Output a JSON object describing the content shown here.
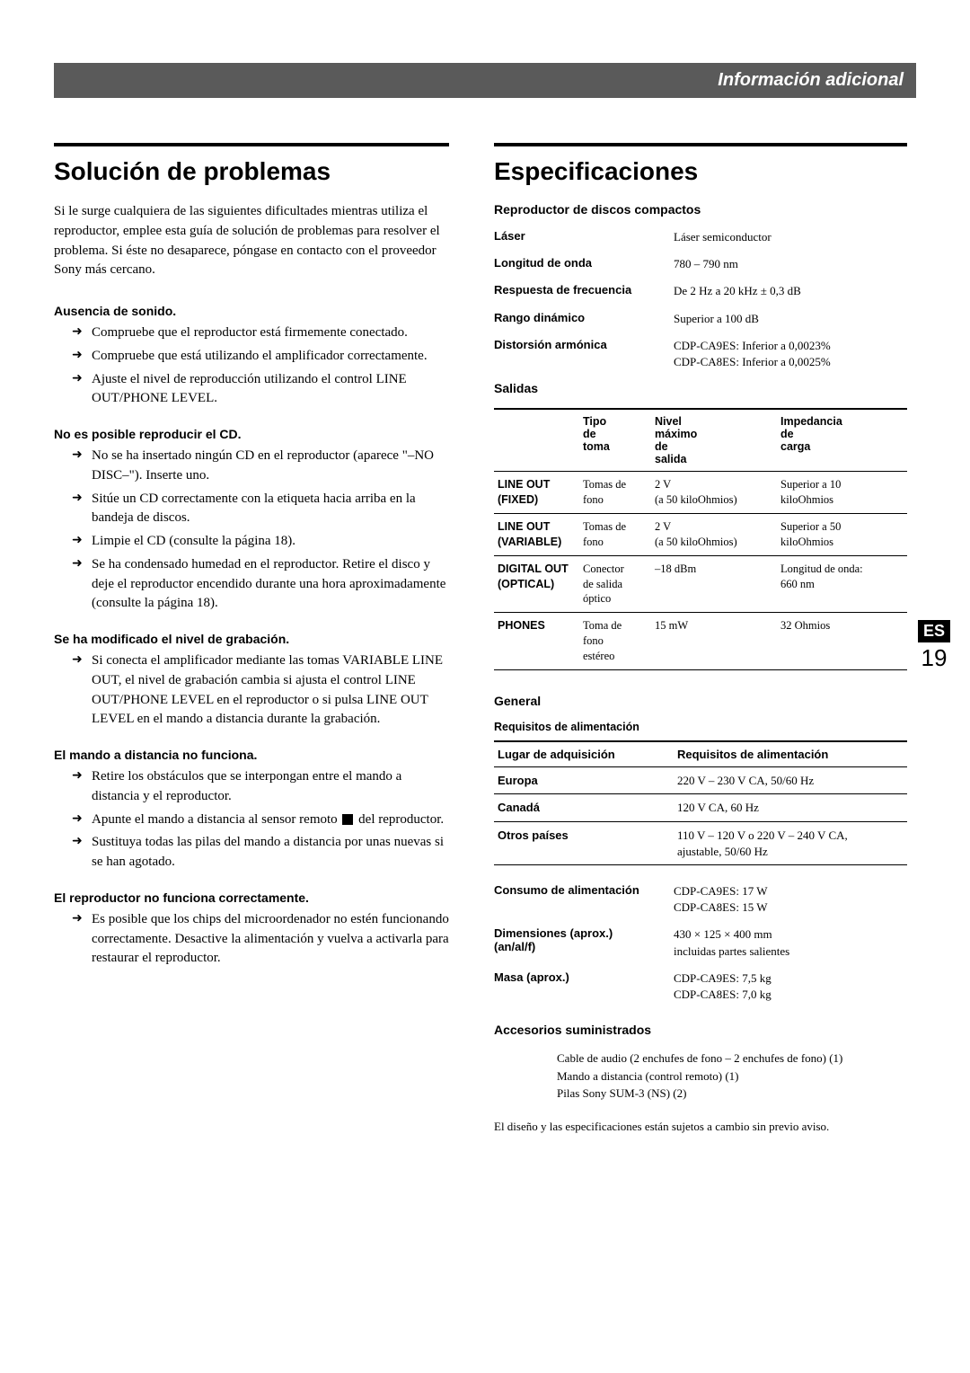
{
  "header": {
    "title": "Información adicional"
  },
  "sidetab": {
    "es": "ES",
    "page": "19"
  },
  "left": {
    "h1": "Solución de problemas",
    "intro": "Si le surge cualquiera de las siguientes dificultades mientras utiliza el reproductor, emplee esta guía de solución de problemas para resolver el problema. Si éste no desaparece, póngase en contacto con el proveedor Sony más cercano.",
    "sections": [
      {
        "head": "Ausencia de sonido.",
        "items": [
          "Compruebe que el reproductor está firmemente conectado.",
          "Compruebe que está utilizando el amplificador correctamente.",
          "Ajuste el nivel de reproducción utilizando el control LINE OUT/PHONE LEVEL."
        ]
      },
      {
        "head": "No es posible reproducir el CD.",
        "items": [
          "No se ha insertado ningún CD en el reproductor (aparece \"–NO DISC–\"). Inserte uno.",
          "Sitúe un CD correctamente con la etiqueta hacia arriba en la bandeja de discos.",
          "Limpie el CD (consulte la página 18).",
          "Se ha condensado humedad en el reproductor. Retire el disco y deje el reproductor encendido durante una hora aproximadamente (consulte la página 18)."
        ]
      },
      {
        "head": "Se ha modificado el nivel de grabación.",
        "items": [
          "Si conecta el amplificador mediante las tomas VARIABLE LINE OUT, el nivel de grabación cambia si ajusta el control LINE OUT/PHONE LEVEL en el reproductor o si pulsa LINE OUT LEVEL en el mando a distancia durante la grabación."
        ]
      },
      {
        "head": "El mando a distancia no funciona.",
        "items": [
          "Retire los obstáculos que se interpongan entre el mando a distancia y el reproductor.",
          "Apunte el mando a distancia al sensor remoto ◼ del reproductor.",
          "Sustituya todas las pilas del mando a distancia por unas nuevas si se han agotado."
        ]
      },
      {
        "head": "El reproductor no funciona correctamente.",
        "items": [
          "Es posible que los chips del microordenador no estén funcionando correctamente. Desactive la alimentación y vuelva a activarla para restaurar el reproductor."
        ]
      }
    ]
  },
  "right": {
    "h1": "Especificaciones",
    "cd_head": "Reproductor de discos compactos",
    "cd_specs": [
      {
        "label": "Láser",
        "value": "Láser semiconductor"
      },
      {
        "label": "Longitud de onda",
        "value": "780 – 790 nm"
      },
      {
        "label": "Respuesta de frecuencia",
        "value": "De 2 Hz a 20 kHz ± 0,3 dB"
      },
      {
        "label": "Rango dinámico",
        "value": "Superior a 100 dB"
      },
      {
        "label": "Distorsión armónica",
        "value": "CDP-CA9ES: Inferior a 0,0023%\nCDP-CA8ES: Inferior a 0,0025%"
      }
    ],
    "salidas_head": "Salidas",
    "salidas_cols": [
      "",
      "Tipo de toma",
      "Nivel máximo de salida",
      "Impedancia de carga"
    ],
    "salidas_rows": [
      {
        "name": "LINE OUT (FIXED)",
        "c1": "Tomas de fono",
        "c2": "2 V\n(a 50 kiloOhmios)",
        "c3": "Superior a 10 kiloOhmios"
      },
      {
        "name": "LINE OUT (VARIABLE)",
        "c1": "Tomas de fono",
        "c2": "2 V\n(a 50 kiloOhmios)",
        "c3": "Superior a 50 kiloOhmios"
      },
      {
        "name": "DIGITAL OUT (OPTICAL)",
        "c1": "Conector de salida óptico",
        "c2": "–18 dBm",
        "c3": "Longitud de onda: 660 nm"
      },
      {
        "name": "PHONES",
        "c1": "Toma de fono estéreo",
        "c2": "15 mW",
        "c3": "32 Ohmios"
      }
    ],
    "general_head": "General",
    "power_sub": "Requisitos de alimentación",
    "power_cols": [
      "Lugar de adquisición",
      "Requisitos de alimentación"
    ],
    "power_rows": [
      {
        "c0": "Europa",
        "c1": "220 V – 230 V CA, 50/60 Hz"
      },
      {
        "c0": "Canadá",
        "c1": "120 V CA, 60 Hz"
      },
      {
        "c0": "Otros países",
        "c1": "110 V – 120 V o 220 V – 240 V CA, ajustable, 50/60 Hz"
      }
    ],
    "gen_specs": [
      {
        "label": "Consumo de alimentación",
        "value": "CDP-CA9ES: 17 W\nCDP-CA8ES: 15 W"
      },
      {
        "label": "Dimensiones (aprox.) (an/al/f)",
        "value": "430 × 125 × 400 mm\nincluidas partes salientes"
      },
      {
        "label": "Masa (aprox.)",
        "value": "CDP-CA9ES: 7,5 kg\nCDP-CA8ES: 7,0 kg"
      }
    ],
    "acc_head": "Accesorios suministrados",
    "acc_items": [
      "Cable de audio (2 enchufes de fono – 2 enchufes de fono)  (1)",
      "Mando a distancia (control remoto) (1)",
      "Pilas Sony SUM-3 (NS) (2)"
    ],
    "footnote": "El diseño y las especificaciones están sujetos a cambio sin previo aviso."
  }
}
